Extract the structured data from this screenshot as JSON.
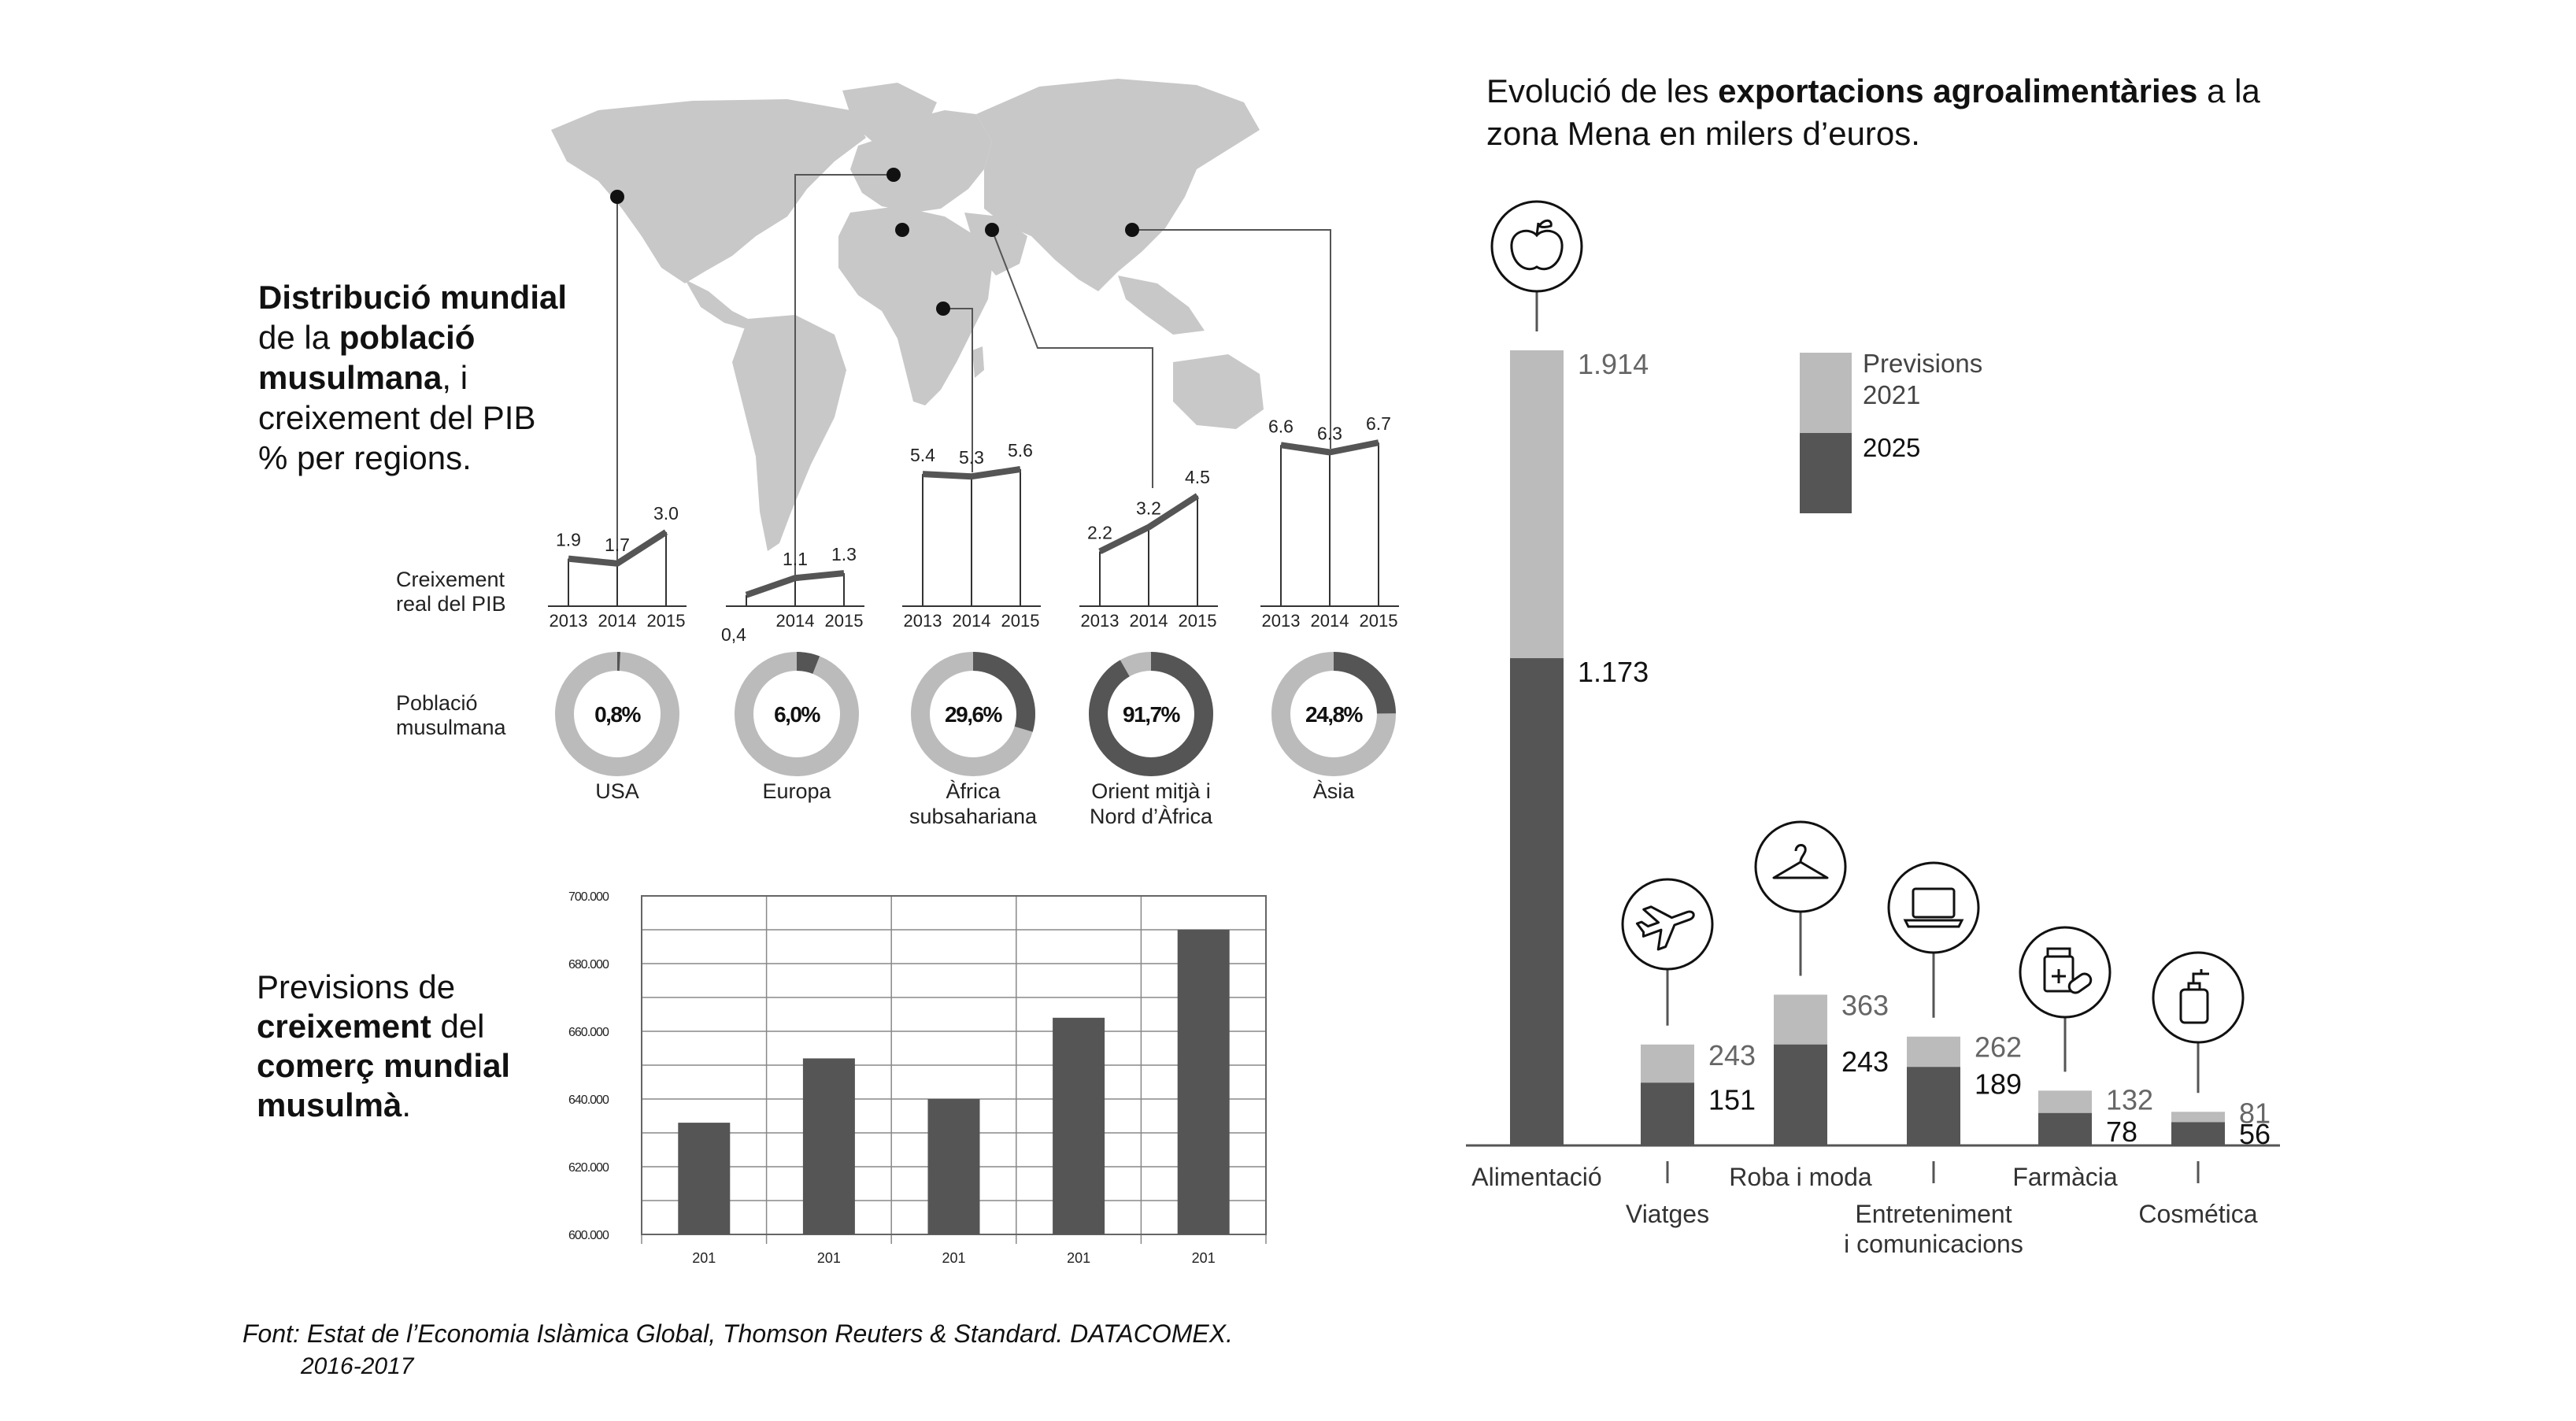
{
  "colors": {
    "dark": "#555555",
    "light": "#bbbbbb",
    "map": "#c8c8c8",
    "line": "#555555",
    "text": "#111111",
    "axis_text": "#222222"
  },
  "world_map": {
    "regions": [
      "USA",
      "Europa",
      "Àfrica subsahariana",
      "Orient mitjà i Nord d'Àfrica",
      "Àsia"
    ]
  },
  "left_panel": {
    "heading_lines": [
      [
        {
          "t": "Distribució mundial",
          "b": true
        }
      ],
      [
        {
          "t": "de la ",
          "b": false
        },
        {
          "t": "població",
          "b": true
        }
      ],
      [
        {
          "t": "musulmana",
          "b": true
        },
        {
          "t": ", i",
          "b": false
        }
      ],
      [
        {
          "t": "creixement del PIB",
          "b": false
        }
      ],
      [
        {
          "t": "% per regions.",
          "b": false
        }
      ]
    ],
    "gdp_row_label": [
      "Creixement",
      "real del PIB"
    ],
    "pop_row_label": [
      "Població",
      "musulmana"
    ],
    "years": [
      "2013",
      "2014",
      "2015"
    ],
    "regions": [
      {
        "name_lines": [
          "USA"
        ],
        "gdp": [
          1.9,
          1.7,
          3.0
        ],
        "gdp_labels": [
          "1.9",
          "1.7",
          "3.0"
        ],
        "share": 0.008,
        "share_label": "0,8%"
      },
      {
        "name_lines": [
          "Europa"
        ],
        "gdp": [
          0.4,
          1.1,
          1.3
        ],
        "gdp_labels": [
          "0,4",
          "1.1",
          "1.3"
        ],
        "share": 0.06,
        "share_label": "6,0%"
      },
      {
        "name_lines": [
          "Àfrica",
          "subsahariana"
        ],
        "gdp": [
          5.4,
          5.3,
          5.6
        ],
        "gdp_labels": [
          "5.4",
          "5.3",
          "5.6"
        ],
        "share": 0.296,
        "share_label": "29,6%"
      },
      {
        "name_lines": [
          "Orient mitjà i",
          "Nord d’Àfrica"
        ],
        "gdp": [
          2.2,
          3.2,
          4.5
        ],
        "gdp_labels": [
          "2.2",
          "3.2",
          "4.5"
        ],
        "share": 0.917,
        "share_label": "91,7%"
      },
      {
        "name_lines": [
          "Àsia"
        ],
        "gdp": [
          6.6,
          6.3,
          6.7
        ],
        "gdp_labels": [
          "6.6",
          "6.3",
          "6.7"
        ],
        "share": 0.248,
        "share_label": "24,8%"
      }
    ]
  },
  "trade_panel": {
    "heading_lines": [
      [
        {
          "t": "Previsions de",
          "b": false
        }
      ],
      [
        {
          "t": "creixement",
          "b": true
        },
        {
          "t": " del",
          "b": false
        }
      ],
      [
        {
          "t": "comerç mundial",
          "b": true
        }
      ],
      [
        {
          "t": "musulmà",
          "b": true
        },
        {
          "t": ".",
          "b": false
        }
      ]
    ]
  },
  "exports_panel": {
    "title_lines": [
      [
        {
          "t": "Evolució de les ",
          "b": false
        },
        {
          "t": "exportacions agroalimentàries",
          "b": true
        },
        {
          "t": " a la",
          "b": false
        }
      ],
      [
        {
          "t": "zona Mena en milers d’euros.",
          "b": false
        }
      ]
    ],
    "legend": [
      {
        "label_lines": [
          "Previsions",
          "2021"
        ],
        "color": "#bbbbbb"
      },
      {
        "label_lines": [
          "2025"
        ],
        "color": "#555555"
      }
    ]
  },
  "source": {
    "line1": "Font: Estat de l’Economia Islàmica Global, Thomson Reuters & Standard. DATACOMEX.",
    "line2": "2016-2017"
  },
  "chart_data": [
    {
      "type": "line",
      "title": "Creixement real del PIB",
      "x": [
        "2013",
        "2014",
        "2015"
      ],
      "series": [
        {
          "name": "USA",
          "values": [
            1.9,
            1.7,
            3.0
          ]
        },
        {
          "name": "Europa",
          "values": [
            0.4,
            1.1,
            1.3
          ]
        },
        {
          "name": "Àfrica subsahariana",
          "values": [
            5.4,
            5.3,
            5.6
          ]
        },
        {
          "name": "Orient mitjà i Nord d’Àfrica",
          "values": [
            2.2,
            3.2,
            4.5
          ]
        },
        {
          "name": "Àsia",
          "values": [
            6.6,
            6.3,
            6.7
          ]
        }
      ]
    },
    {
      "type": "pie",
      "title": "Població musulmana",
      "categories": [
        "USA",
        "Europa",
        "Àfrica subsahariana",
        "Orient mitjà i Nord d’Àfrica",
        "Àsia"
      ],
      "values": [
        0.8,
        6.0,
        29.6,
        91.7,
        24.8
      ]
    },
    {
      "type": "bar",
      "categories": [
        "201",
        "201",
        "201",
        "201",
        "201"
      ],
      "values": [
        633000,
        652000,
        640000,
        664000,
        690000
      ],
      "ylim": [
        600000,
        700000
      ],
      "yticks": [
        "600.000",
        "620.000",
        "640.000",
        "660.000",
        "680.000",
        "700.000"
      ],
      "ytick_values": [
        600000,
        620000,
        640000,
        660000,
        680000,
        700000
      ],
      "grid": true
    },
    {
      "type": "bar",
      "stacked": true,
      "categories": [
        "Alimentació",
        "Viatges",
        "Roba i moda",
        "Entreteniment i comunicacions",
        "Farmàcia",
        "Cosmética"
      ],
      "category_label_lines": [
        [
          "Alimentació"
        ],
        [
          "Viatges"
        ],
        [
          "Roba i moda"
        ],
        [
          "Entreteniment",
          "i comunicacions"
        ],
        [
          "Farmàcia"
        ],
        [
          "Cosmética"
        ]
      ],
      "icons": [
        "apple-icon",
        "airplane-icon",
        "hanger-icon",
        "laptop-icon",
        "medicine-icon",
        "lotion-bottle-icon"
      ],
      "series": [
        {
          "name": "Previsions 2021",
          "values": [
            1914,
            243,
            363,
            262,
            132,
            81
          ],
          "labels": [
            "1.914",
            "243",
            "363",
            "262",
            "132",
            "81"
          ]
        },
        {
          "name": "2025",
          "values": [
            1173,
            151,
            243,
            189,
            78,
            56
          ],
          "labels": [
            "1.173",
            "151",
            "243",
            "189",
            "78",
            "56"
          ]
        }
      ]
    }
  ]
}
